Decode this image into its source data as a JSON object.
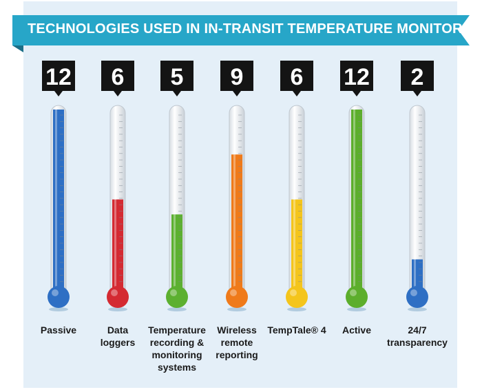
{
  "title": "TECHNOLOGIES USED IN IN-TRANSIT TEMPERATURE MONITORING",
  "colors": {
    "banner": "#27a6c8",
    "panel": "#e4eff8",
    "tag": "#141414"
  },
  "chart_data": {
    "type": "bar",
    "title": "TECHNOLOGIES USED IN IN-TRANSIT TEMPERATURE MONITORING",
    "categories": [
      "Passive",
      "Data\nloggers",
      "Temperature\nrecording &\nmonitoring\nsystems",
      "Wireless\nremote\nreporting",
      "TempTale® 4",
      "Active",
      "24/7\ntransparency"
    ],
    "values": [
      12,
      6,
      5,
      9,
      6,
      12,
      2
    ],
    "value_labels": [
      "12",
      "6",
      "5",
      "9",
      "6",
      "12",
      "2"
    ],
    "colors": [
      "#2e6fc4",
      "#d42a32",
      "#5cb030",
      "#ef7a1a",
      "#f4c51c",
      "#5cae2c",
      "#2e6fc4"
    ],
    "ylim": [
      0,
      12
    ],
    "xlabel": "",
    "ylabel": "",
    "grid": false,
    "legend": "none"
  }
}
